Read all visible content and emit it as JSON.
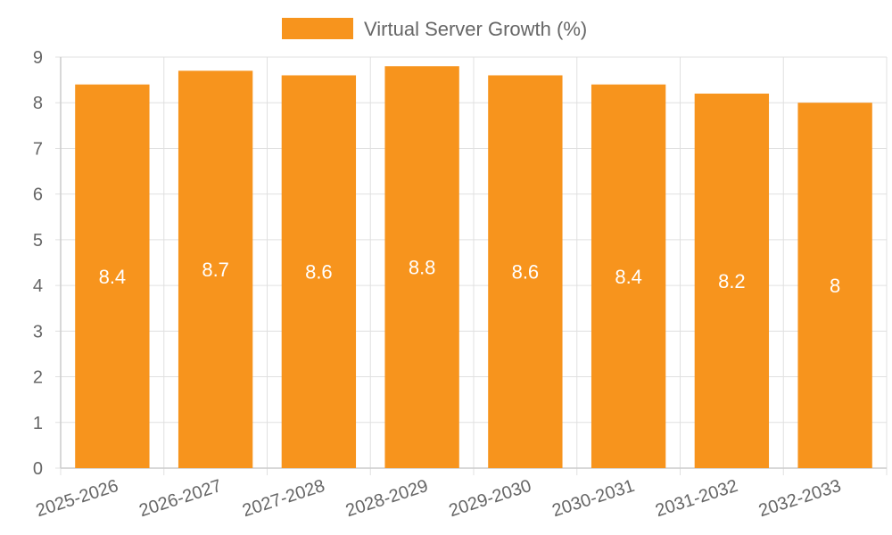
{
  "chart_data": {
    "type": "bar",
    "categories": [
      "2025-2026",
      "2026-2027",
      "2027-2028",
      "2028-2029",
      "2029-2030",
      "2030-2031",
      "2031-2032",
      "2032-2033"
    ],
    "series": [
      {
        "name": "Virtual Server Growth (%)",
        "values": [
          8.4,
          8.7,
          8.6,
          8.8,
          8.6,
          8.4,
          8.2,
          8
        ],
        "color": "#f7941d"
      }
    ],
    "data_labels": [
      "8.4",
      "8.7",
      "8.6",
      "8.8",
      "8.6",
      "8.4",
      "8.2",
      "8"
    ],
    "ylim": [
      0,
      9
    ],
    "yticks": [
      "0",
      "1",
      "2",
      "3",
      "4",
      "5",
      "6",
      "7",
      "8",
      "9"
    ],
    "grid": true,
    "legend_position": "top-center",
    "colors": {
      "bar": "#f7941d",
      "grid": "#e0e0e0",
      "axis": "#cccccc",
      "text": "#666666",
      "data_label": "#ffffff"
    }
  }
}
